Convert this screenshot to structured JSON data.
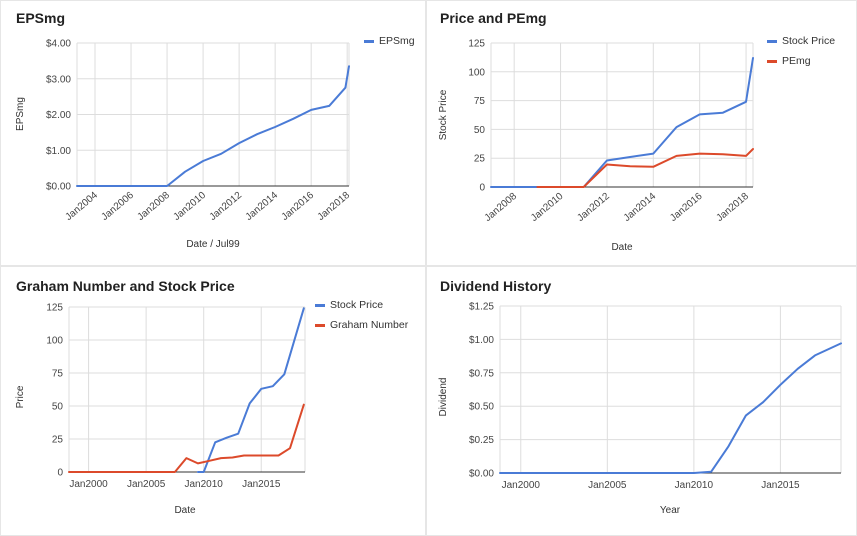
{
  "colors": {
    "blue": "#4a7bd6",
    "red": "#dc4a2b",
    "grid": "#dddddd",
    "baseline": "#333333"
  },
  "chart_data": [
    {
      "type": "line",
      "title": "EPSmg",
      "xlabel": "Date / Jul99",
      "ylabel": "EPSmg",
      "x_ticks": [
        "Jan2004",
        "Jan2006",
        "Jan2008",
        "Jan2010",
        "Jan2012",
        "Jan2014",
        "Jan2016",
        "Jan2018"
      ],
      "y_ticks": [
        "$0.00",
        "$1.00",
        "$2.00",
        "$3.00",
        "$4.00"
      ],
      "xlim": [
        2003,
        2018.1
      ],
      "ylim": [
        0,
        4
      ],
      "legend_position": "top-right",
      "series": [
        {
          "name": "EPSmg",
          "color": "#4a7bd6",
          "x": [
            2003,
            2004,
            2005,
            2006,
            2007,
            2008,
            2009,
            2010,
            2011,
            2012,
            2013,
            2014,
            2015,
            2016,
            2017,
            2017.9,
            2018.1
          ],
          "y": [
            0,
            0,
            0,
            0,
            0,
            0,
            0.4,
            0.7,
            0.9,
            1.2,
            1.45,
            1.65,
            1.88,
            2.13,
            2.24,
            2.75,
            3.35
          ]
        }
      ]
    },
    {
      "type": "line",
      "title": "Price and PEmg",
      "xlabel": "Date",
      "ylabel": "Stock Price",
      "x_ticks": [
        "Jan2008",
        "Jan2010",
        "Jan2012",
        "Jan2014",
        "Jan2016",
        "Jan2018"
      ],
      "y_ticks": [
        "0",
        "25",
        "50",
        "75",
        "100",
        "125"
      ],
      "xlim": [
        2007,
        2018.3
      ],
      "ylim": [
        0,
        125
      ],
      "legend_position": "top-right",
      "series": [
        {
          "name": "Stock Price",
          "color": "#4a7bd6",
          "x": [
            2007,
            2008,
            2009,
            2010,
            2011,
            2012,
            2013,
            2014,
            2015,
            2016,
            2017,
            2018,
            2018.3
          ],
          "y": [
            0,
            0,
            0,
            0,
            0,
            23,
            26,
            29,
            52,
            63,
            64.5,
            74,
            112
          ]
        },
        {
          "name": "PEmg",
          "color": "#dc4a2b",
          "x": [
            2009,
            2010,
            2011,
            2012,
            2013,
            2014,
            2015,
            2016,
            2017,
            2018,
            2018.3
          ],
          "y": [
            0,
            0,
            0,
            19.5,
            18,
            17.5,
            27,
            29,
            28.5,
            27,
            33
          ]
        }
      ]
    },
    {
      "type": "line",
      "title": "Graham Number and Stock Price",
      "xlabel": "Date",
      "ylabel": "Price",
      "x_ticks": [
        "Jan2000",
        "Jan2005",
        "Jan2010",
        "Jan2015"
      ],
      "y_ticks": [
        "0",
        "25",
        "50",
        "75",
        "100",
        "125"
      ],
      "xlim": [
        1998.3,
        2018.8
      ],
      "ylim": [
        0,
        125
      ],
      "legend_position": "top-right",
      "series": [
        {
          "name": "Stock Price",
          "color": "#4a7bd6",
          "x": [
            2009.5,
            2010,
            2011,
            2012,
            2013,
            2014,
            2015,
            2016,
            2017,
            2018.7
          ],
          "y": [
            0,
            0,
            22.5,
            26,
            29,
            52,
            63,
            65,
            74,
            124
          ]
        },
        {
          "name": "Graham Number",
          "color": "#dc4a2b",
          "x": [
            1998.3,
            2000,
            2002,
            2004,
            2006,
            2007.5,
            2008.5,
            2009.5,
            2010.5,
            2011.5,
            2012.5,
            2013.5,
            2014.5,
            2015.5,
            2016.5,
            2017.5,
            2018.7
          ],
          "y": [
            0,
            0,
            0,
            0,
            0,
            0,
            10.5,
            6.5,
            8.5,
            10.5,
            11,
            12.5,
            12.5,
            12.5,
            12.5,
            18,
            51
          ]
        }
      ]
    },
    {
      "type": "line",
      "title": "Dividend History",
      "xlabel": "Year",
      "ylabel": "Dividend",
      "x_ticks": [
        "Jan2000",
        "Jan2005",
        "Jan2010",
        "Jan2015"
      ],
      "y_ticks": [
        "$0.00",
        "$0.25",
        "$0.50",
        "$0.75",
        "$1.00",
        "$1.25"
      ],
      "xlim": [
        1998.8,
        2018.5
      ],
      "ylim": [
        0,
        1.25
      ],
      "legend_position": "none",
      "series": [
        {
          "name": "",
          "color": "#4a7bd6",
          "x": [
            1998.8,
            2003,
            2007,
            2010,
            2011,
            2012,
            2013,
            2014,
            2015,
            2016,
            2017,
            2018.5
          ],
          "y": [
            0,
            0,
            0,
            0,
            0.01,
            0.2,
            0.43,
            0.53,
            0.66,
            0.78,
            0.88,
            0.97
          ]
        }
      ]
    }
  ]
}
